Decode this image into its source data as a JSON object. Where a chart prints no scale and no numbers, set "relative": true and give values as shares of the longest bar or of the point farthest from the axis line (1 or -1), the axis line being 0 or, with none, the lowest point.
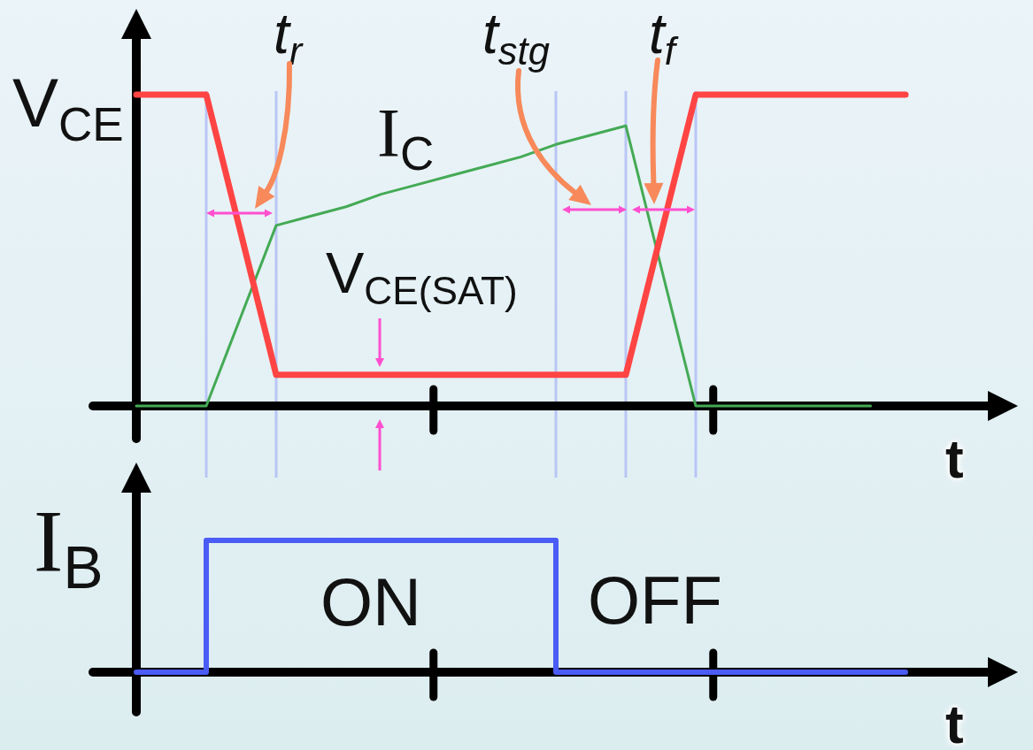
{
  "chart_data": [
    {
      "type": "line",
      "relative": true,
      "xlabel": "t",
      "tick_labels": false,
      "marker": "none",
      "grid": "x",
      "categories": [
        null,
        null,
        null,
        null,
        null,
        null,
        null,
        null,
        null,
        null,
        null,
        null,
        null,
        null,
        null,
        null,
        null,
        null,
        null,
        null,
        null,
        null,
        null
      ],
      "series": [
        {
          "name": "V$_{CE}$",
          "color": "#ff4444",
          "values": [
            1,
            1,
            1,
            0.55,
            0.1,
            0.1,
            0.1,
            0.1,
            0.1,
            0.1,
            0.1,
            0.1,
            0.1,
            0.1,
            0.1,
            0.55,
            1,
            1,
            1,
            1,
            1,
            1,
            1
          ]
        },
        {
          "name": "I$_{C}$",
          "color": "#44aa55",
          "values": [
            0,
            0,
            0,
            0.29,
            0.58,
            0.61,
            0.64,
            0.68,
            0.71,
            0.74,
            0.77,
            0.8,
            0.84,
            0.87,
            0.9,
            0.45,
            0,
            0,
            0,
            0,
            0,
            0,
            null
          ]
        }
      ],
      "annotations": [
        "t$_{r}$",
        "t$_{stg}$",
        "t$_{f}$",
        "V$_{CE(SAT)}$"
      ]
    },
    {
      "type": "step",
      "relative": true,
      "xlabel": "t",
      "tick_labels": false,
      "marker": "none",
      "categories": [
        null,
        null,
        null,
        null,
        null,
        null,
        null,
        null,
        null,
        null,
        null,
        null,
        null,
        null,
        null,
        null,
        null,
        null,
        null,
        null,
        null,
        null,
        null
      ],
      "series": [
        {
          "name": "I$_{B}$",
          "color": "#4a5cf5",
          "values": [
            0,
            0,
            1,
            1,
            1,
            1,
            1,
            1,
            1,
            1,
            1,
            1,
            0,
            0,
            0,
            0,
            0,
            0,
            0,
            0,
            0,
            0,
            0
          ]
        }
      ],
      "annotations": [
        "ON",
        "OFF"
      ]
    }
  ]
}
